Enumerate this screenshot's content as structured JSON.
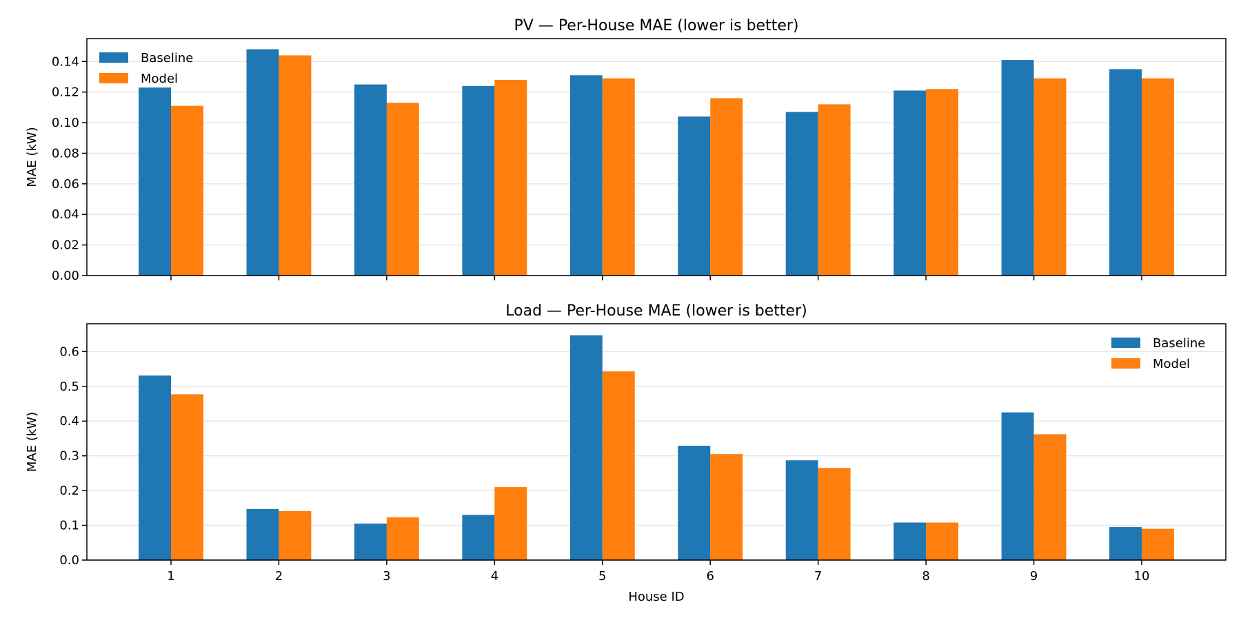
{
  "colors": {
    "baseline": "#1f77b4",
    "model": "#ff7f0e"
  },
  "chart_data": [
    {
      "type": "bar",
      "title": "PV — Per-House MAE (lower is better)",
      "xlabel": "",
      "ylabel": "MAE (kW)",
      "categories": [
        "1",
        "2",
        "3",
        "4",
        "5",
        "6",
        "7",
        "8",
        "9",
        "10"
      ],
      "ylim": [
        0,
        0.155
      ],
      "yticks": [
        "0.00",
        "0.02",
        "0.04",
        "0.06",
        "0.08",
        "0.10",
        "0.12",
        "0.14"
      ],
      "show_x_tick_labels": false,
      "legend_position": "top-left",
      "grid": "y",
      "series": [
        {
          "name": "Baseline",
          "color": "#1f77b4",
          "values": [
            0.123,
            0.148,
            0.125,
            0.124,
            0.131,
            0.104,
            0.107,
            0.121,
            0.141,
            0.135
          ]
        },
        {
          "name": "Model",
          "color": "#ff7f0e",
          "values": [
            0.111,
            0.144,
            0.113,
            0.128,
            0.129,
            0.116,
            0.112,
            0.122,
            0.129,
            0.129
          ]
        }
      ]
    },
    {
      "type": "bar",
      "title": "Load — Per-House MAE (lower is better)",
      "xlabel": "House ID",
      "ylabel": "MAE (kW)",
      "categories": [
        "1",
        "2",
        "3",
        "4",
        "5",
        "6",
        "7",
        "8",
        "9",
        "10"
      ],
      "ylim": [
        0,
        0.68
      ],
      "yticks": [
        "0.0",
        "0.1",
        "0.2",
        "0.3",
        "0.4",
        "0.5",
        "0.6"
      ],
      "show_x_tick_labels": true,
      "legend_position": "top-right",
      "grid": "y",
      "series": [
        {
          "name": "Baseline",
          "color": "#1f77b4",
          "values": [
            0.531,
            0.147,
            0.105,
            0.13,
            0.647,
            0.329,
            0.287,
            0.108,
            0.425,
            0.095
          ]
        },
        {
          "name": "Model",
          "color": "#ff7f0e",
          "values": [
            0.477,
            0.141,
            0.123,
            0.21,
            0.543,
            0.305,
            0.265,
            0.108,
            0.362,
            0.09
          ]
        }
      ]
    }
  ]
}
